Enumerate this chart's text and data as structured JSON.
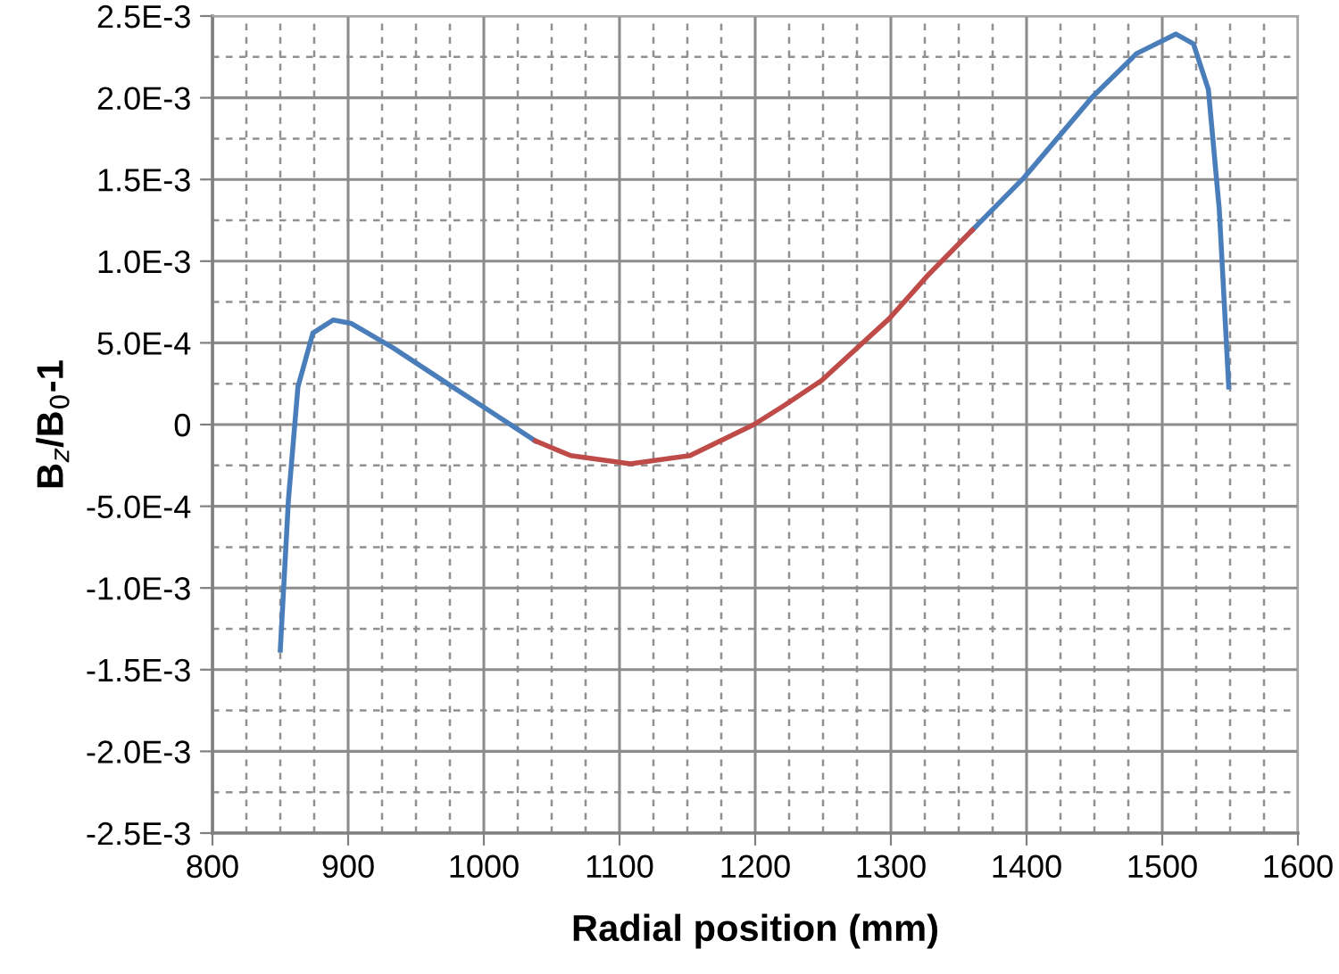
{
  "chart_data": {
    "type": "line",
    "xlabel": "Radial position (mm)",
    "ylabel": "B$_{z}$/B$_{0}$-1",
    "x": [
      850,
      856,
      863,
      874,
      889,
      902,
      933,
      977,
      1003,
      1038,
      1064,
      1108,
      1152,
      1199,
      1222,
      1249,
      1299,
      1328,
      1360,
      1398,
      1448,
      1481,
      1510,
      1523,
      1534,
      1542,
      1549
    ],
    "series": [
      {
        "color": "#4a7ebb",
        "values": [
          -0.00138,
          -0.00046,
          0.00023,
          0.00056,
          0.00064,
          0.00062,
          0.00047,
          0.00023,
          9e-05,
          -0.0001,
          null,
          null,
          null,
          null,
          null,
          null,
          null,
          null,
          0.00119,
          0.00151,
          0.002,
          0.00227,
          0.00239,
          0.00233,
          0.00205,
          0.00132,
          0.00023
        ]
      },
      {
        "color": "#be4b48",
        "values": [
          null,
          null,
          null,
          null,
          null,
          null,
          null,
          null,
          null,
          -0.0001,
          -0.00019,
          -0.00024,
          -0.00019,
          0,
          0.00012,
          0.00027,
          0.00065,
          0.00092,
          0.00119,
          null,
          null,
          null,
          null,
          null,
          null,
          null,
          null
        ]
      }
    ],
    "xlim": [
      800,
      1600
    ],
    "xticks": [
      800,
      900,
      1000,
      1100,
      1200,
      1300,
      1400,
      1500,
      1600
    ],
    "ylim": [
      -0.0025,
      0.0025
    ],
    "yticks": [
      {
        "value": -0.0025,
        "label": "-2.5E-3"
      },
      {
        "value": -0.002,
        "label": "-2.0E-3"
      },
      {
        "value": -0.0015,
        "label": "-1.5E-3"
      },
      {
        "value": -0.001,
        "label": "-1.0E-3"
      },
      {
        "value": -0.0005,
        "label": "-5.0E-4"
      },
      {
        "value": 0,
        "label": "0"
      },
      {
        "value": 0.0005,
        "label": "5.0E-4"
      },
      {
        "value": 0.001,
        "label": "1.0E-3"
      },
      {
        "value": 0.0015,
        "label": "1.5E-3"
      },
      {
        "value": 0.002,
        "label": "2.0E-3"
      },
      {
        "value": 0.0025,
        "label": "2.5E-3"
      }
    ],
    "grid": true,
    "marker": "none",
    "line_style": "solid"
  }
}
